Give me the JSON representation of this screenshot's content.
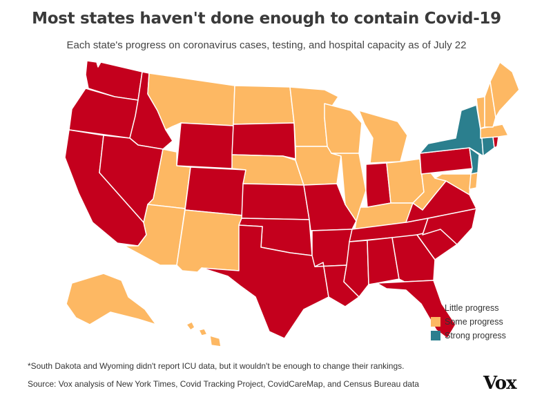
{
  "title": "Most states haven't done enough to contain Covid-19",
  "subtitle": "Each state's progress on coronavirus cases, testing, and hospital capacity as of July 22",
  "legend": [
    {
      "label": "Little progress",
      "color": "#c4001d"
    },
    {
      "label": "Some progress",
      "color": "#fdb863"
    },
    {
      "label": "Strong progress",
      "color": "#2b7f8e"
    }
  ],
  "footnote": "*South Dakota and Wyoming didn't report ICU data, but it wouldn't be enough to change their rankings.",
  "source": "Source: Vox analysis of New York Times, Covid Tracking Project, CovidCareMap, and Census Bureau data",
  "logo": "Vox",
  "colors": {
    "little": "#c4001d",
    "some": "#fdb863",
    "strong": "#2b7f8e",
    "border": "#ffffff"
  },
  "states": [
    {
      "id": "WA",
      "status": "little"
    },
    {
      "id": "OR",
      "status": "little"
    },
    {
      "id": "CA",
      "status": "little"
    },
    {
      "id": "ID",
      "status": "little"
    },
    {
      "id": "NV",
      "status": "little"
    },
    {
      "id": "MT",
      "status": "some"
    },
    {
      "id": "WY",
      "status": "little"
    },
    {
      "id": "UT",
      "status": "some"
    },
    {
      "id": "AZ",
      "status": "some"
    },
    {
      "id": "CO",
      "status": "little"
    },
    {
      "id": "NM",
      "status": "some"
    },
    {
      "id": "ND",
      "status": "some"
    },
    {
      "id": "SD",
      "status": "little"
    },
    {
      "id": "NE",
      "status": "some"
    },
    {
      "id": "KS",
      "status": "little"
    },
    {
      "id": "OK",
      "status": "little"
    },
    {
      "id": "TX",
      "status": "little"
    },
    {
      "id": "MN",
      "status": "some"
    },
    {
      "id": "IA",
      "status": "some"
    },
    {
      "id": "MO",
      "status": "little"
    },
    {
      "id": "AR",
      "status": "little"
    },
    {
      "id": "LA",
      "status": "little"
    },
    {
      "id": "WI",
      "status": "some"
    },
    {
      "id": "IL",
      "status": "some"
    },
    {
      "id": "MI",
      "status": "some"
    },
    {
      "id": "IN",
      "status": "little"
    },
    {
      "id": "OH",
      "status": "some"
    },
    {
      "id": "KY",
      "status": "some"
    },
    {
      "id": "TN",
      "status": "little"
    },
    {
      "id": "MS",
      "status": "little"
    },
    {
      "id": "AL",
      "status": "little"
    },
    {
      "id": "GA",
      "status": "little"
    },
    {
      "id": "FL",
      "status": "little"
    },
    {
      "id": "SC",
      "status": "little"
    },
    {
      "id": "NC",
      "status": "little"
    },
    {
      "id": "VA",
      "status": "little"
    },
    {
      "id": "WV",
      "status": "some"
    },
    {
      "id": "PA",
      "status": "little"
    },
    {
      "id": "NY",
      "status": "strong"
    },
    {
      "id": "NJ",
      "status": "strong"
    },
    {
      "id": "CT",
      "status": "strong"
    },
    {
      "id": "RI",
      "status": "little"
    },
    {
      "id": "MA",
      "status": "some"
    },
    {
      "id": "VT",
      "status": "some"
    },
    {
      "id": "NH",
      "status": "some"
    },
    {
      "id": "ME",
      "status": "some"
    },
    {
      "id": "MD",
      "status": "some"
    },
    {
      "id": "DE",
      "status": "some"
    },
    {
      "id": "AK",
      "status": "some"
    },
    {
      "id": "HI",
      "status": "some"
    }
  ]
}
